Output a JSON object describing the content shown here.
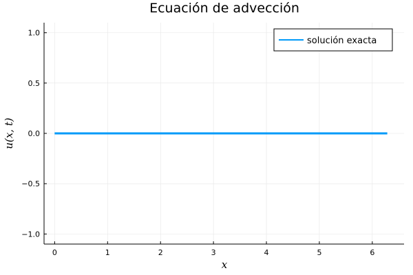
{
  "chart_data": {
    "type": "line",
    "title": "Ecuación de advección",
    "xlabel": "x",
    "ylabel": "u(x, t)",
    "xlim": [
      -0.2,
      6.6
    ],
    "ylim": [
      -1.1,
      1.1
    ],
    "xticks": [
      0,
      1,
      2,
      3,
      4,
      5,
      6
    ],
    "xtick_labels": [
      "0",
      "1",
      "2",
      "3",
      "4",
      "5",
      "6"
    ],
    "yticks": [
      -1.0,
      -0.5,
      0.0,
      0.5,
      1.0
    ],
    "ytick_labels": [
      "−1.0",
      "−0.5",
      "0.0",
      "0.5",
      "1.0"
    ],
    "grid": true,
    "legend_position": "top-right",
    "series": [
      {
        "name": "solución exacta",
        "color": "#009af9",
        "x": [
          0,
          6.2832
        ],
        "y": [
          0,
          0
        ]
      }
    ]
  }
}
